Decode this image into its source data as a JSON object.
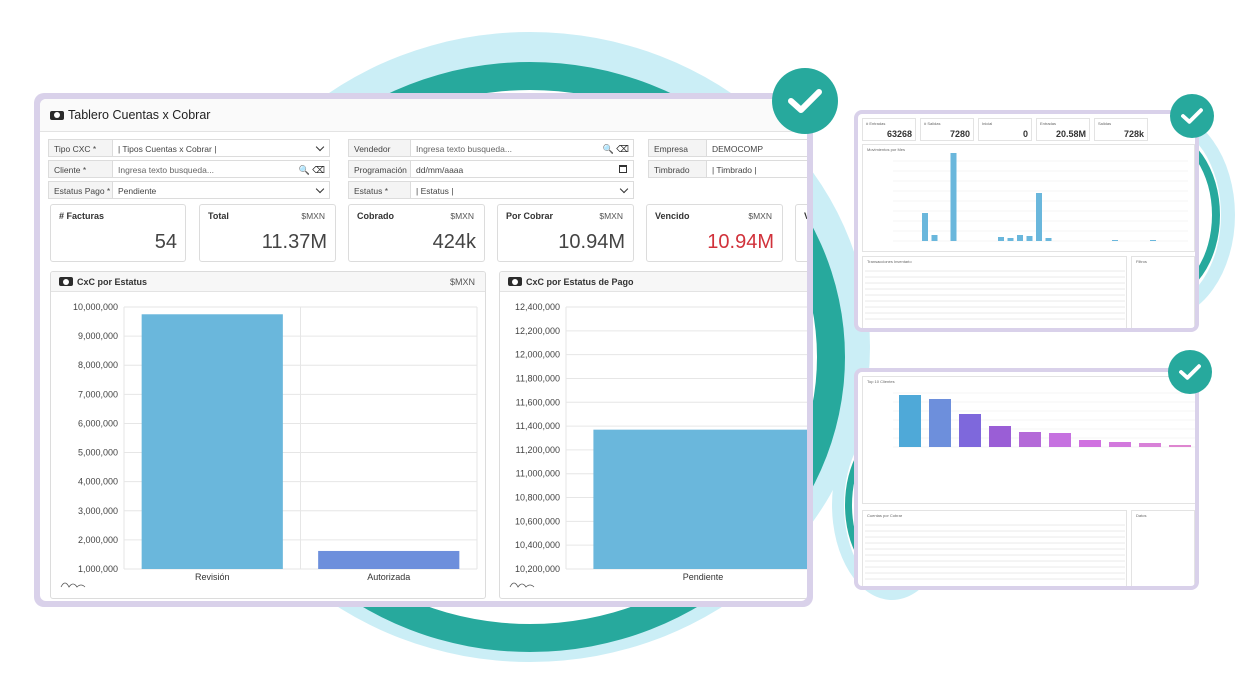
{
  "colors": {
    "accent": "#27a99d",
    "bar_blue": "#6ab7dc",
    "bar_indigo": "#6d8fdc",
    "danger": "#d1323b",
    "frame": "#d9d1ea"
  },
  "main": {
    "title": "Tablero Cuentas x Cobrar",
    "title_icon": "money-icon",
    "filters": {
      "tipo_cxc": {
        "label": "Tipo CXC *",
        "value": "| Tipos Cuentas x Cobrar |"
      },
      "vendedor": {
        "label": "Vendedor",
        "placeholder": "Ingresa texto busqueda..."
      },
      "empresa": {
        "label": "Empresa",
        "value": "DEMOCOMP"
      },
      "cliente": {
        "label": "Cliente *",
        "placeholder": "Ingresa texto busqueda..."
      },
      "programacion": {
        "label": "Programación *",
        "value": "dd/mm/aaaa"
      },
      "timbrado": {
        "label": "Timbrado",
        "value": "| Timbrado |"
      },
      "estatus_pago": {
        "label": "Estatus Pago *",
        "value": "Pendiente"
      },
      "estatus": {
        "label": "Estatus *",
        "value": "| Estatus |"
      }
    },
    "cards": [
      {
        "title": "# Facturas",
        "unit": "",
        "value": "54"
      },
      {
        "title": "Total",
        "unit": "$MXN",
        "value": "11.37M"
      },
      {
        "title": "Cobrado",
        "unit": "$MXN",
        "value": "424k"
      },
      {
        "title": "Por Cobrar",
        "unit": "$MXN",
        "value": "10.94M"
      },
      {
        "title": "Vencido",
        "unit": "$MXN",
        "value": "10.94M"
      },
      {
        "title": "V",
        "unit": "",
        "value": ""
      }
    ],
    "panels": {
      "left": {
        "title": "CxC por Estatus",
        "unit": "$MXN"
      },
      "right": {
        "title": "CxC por Estatus de Pago",
        "unit": ""
      }
    }
  },
  "chart_data": [
    {
      "type": "bar",
      "title": "CxC por Estatus",
      "categories": [
        "Revisión",
        "Autorizada"
      ],
      "values": [
        9750000,
        1620000
      ],
      "ylim": [
        1000000,
        10000000
      ],
      "yticks": [
        "10,000,000",
        "9,000,000",
        "8,000,000",
        "7,000,000",
        "6,000,000",
        "5,000,000",
        "4,000,000",
        "3,000,000",
        "2,000,000",
        "1,000,000"
      ],
      "grid": true
    },
    {
      "type": "bar",
      "title": "CxC por Estatus de Pago",
      "categories": [
        "Pendiente"
      ],
      "values": [
        11370000
      ],
      "ylim": [
        10200000,
        12400000
      ],
      "yticks": [
        "12,400,000",
        "12,200,000",
        "12,000,000",
        "11,800,000",
        "11,600,000",
        "11,400,000",
        "11,200,000",
        "11,000,000",
        "10,800,000",
        "10,600,000",
        "10,400,000",
        "10,200,000"
      ],
      "grid": true
    }
  ],
  "side_top": {
    "stats": [
      {
        "label": "# Entradas",
        "value": "63268"
      },
      {
        "label": "# Salidas",
        "value": "7280"
      },
      {
        "label": "Inicial",
        "value": "0"
      },
      {
        "label": "Entradas",
        "value": "20.58M"
      },
      {
        "label": "Salidas",
        "value": "728k"
      }
    ],
    "chart_title": "Movimientos por Mes",
    "table_title": "Transacciones Inventario",
    "filters_title": "Filtros"
  },
  "side_bottom": {
    "chart_title": "Top 10 Clientes",
    "table_title": "Cuentas por Cobrar",
    "filters_title": "Datos"
  }
}
